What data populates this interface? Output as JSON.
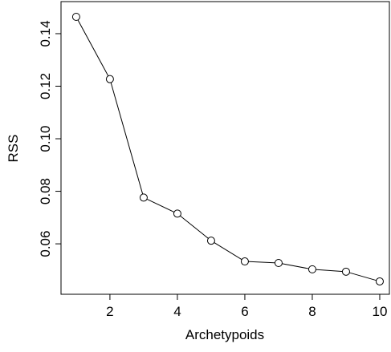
{
  "chart_data": {
    "type": "line",
    "x_label": "Archetypoids",
    "y_label": "RSS",
    "x": [
      1,
      2,
      3,
      4,
      5,
      6,
      7,
      8,
      9,
      10
    ],
    "values": [
      0.1464,
      0.1227,
      0.0776,
      0.0715,
      0.0612,
      0.0533,
      0.0527,
      0.0503,
      0.0494,
      0.0457
    ],
    "color": "#000000",
    "marker": "open-circle",
    "xlim": [
      0.55,
      10.31
    ],
    "ylim": [
      0.0408,
      0.1522
    ],
    "xticks": [
      2,
      4,
      6,
      8,
      10
    ],
    "yticks": [
      {
        "value": 0.06,
        "label": "0.06"
      },
      {
        "value": 0.08,
        "label": "0.08"
      },
      {
        "value": 0.1,
        "label": "0.10"
      },
      {
        "value": 0.12,
        "label": "0.12"
      },
      {
        "value": 0.14,
        "label": "0.14"
      }
    ]
  }
}
